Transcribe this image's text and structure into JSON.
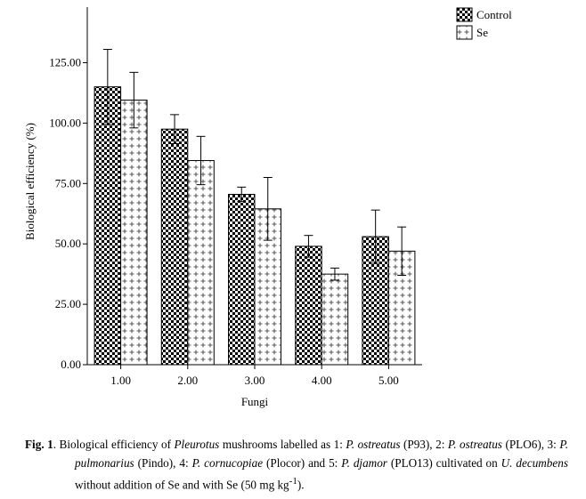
{
  "chart_data": {
    "type": "bar",
    "categories": [
      "1.00",
      "2.00",
      "3.00",
      "4.00",
      "5.00"
    ],
    "series": [
      {
        "name": "Control",
        "values": [
          115,
          97.5,
          70.5,
          49,
          53
        ],
        "error": [
          15.5,
          6,
          3,
          4.5,
          11
        ],
        "color": "#000000"
      },
      {
        "name": "Se",
        "values": [
          109.5,
          84.5,
          64.5,
          37.5,
          47
        ],
        "error": [
          11.5,
          10,
          13,
          2.5,
          10
        ],
        "color": "#000000"
      }
    ],
    "xlabel": "Fungi",
    "ylabel": "Biological efficiency (%)",
    "yticks": [
      "0.00",
      "25.00",
      "50.00",
      "75.00",
      "100.00",
      "125.00"
    ],
    "ylim": [
      0,
      148
    ],
    "legend_position": "top-right",
    "grid": false
  },
  "caption": {
    "fig_label": "Fig. 1",
    "t1": ". Biological efficiency of ",
    "i1": "Pleurotus",
    "t2": " mushrooms labelled as 1: ",
    "i2": "P. ostreatus",
    "t3": " (P93), 2: ",
    "i3": "P. ostreatus",
    "t4": " (PLO6), 3: ",
    "i4": "P. pulmonarius",
    "t5": " (Pindo), 4: ",
    "i5": "P. cornucopiae",
    "t6": " (Plocor) and 5: ",
    "i6": "P. djamor",
    "t7": " (PLO13) cultivated on ",
    "i7": "U. decumbens",
    "t8": " without addition of Se and with Se (50 mg kg",
    "sup": "-1",
    "t9": ")."
  }
}
